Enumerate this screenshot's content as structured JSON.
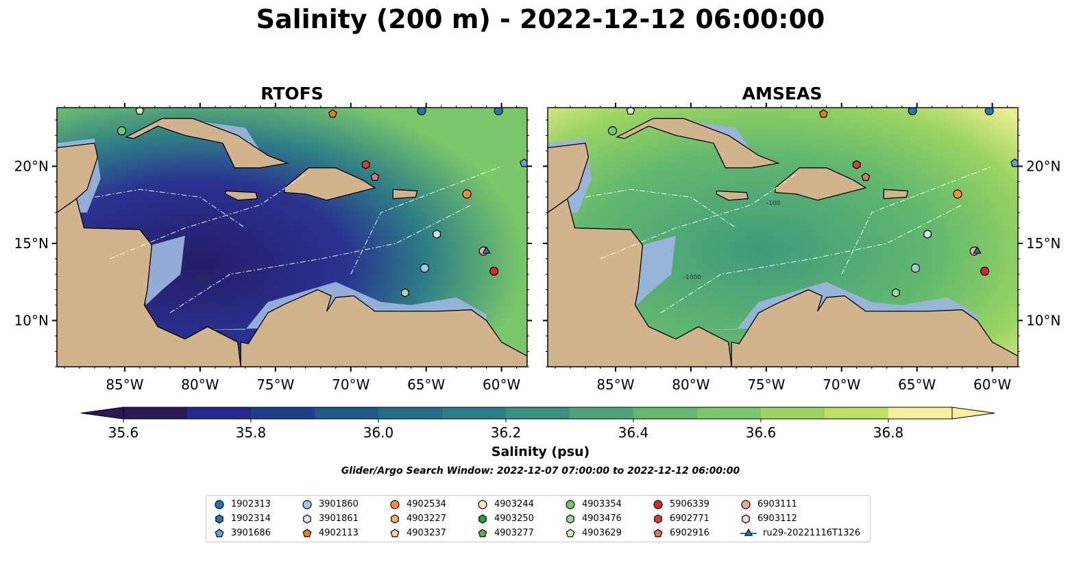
{
  "figure": {
    "title": "Salinity (200 m) - 2022-12-12 06:00:00",
    "search_window": "Glider/Argo Search Window: 2022-12-07 07:00:00 to 2022-12-12 06:00:00"
  },
  "panels": [
    {
      "title": "RTOFS"
    },
    {
      "title": "AMSEAS"
    }
  ],
  "colors": {
    "land": "#d2b48c",
    "shelf_water": "#99b4dc",
    "coastline": "#000000",
    "eez_boundary": "#ffffff",
    "colorscale": [
      "#2a1858",
      "#26288e",
      "#1f3e8c",
      "#1d5a8a",
      "#1f6f88",
      "#2a7f86",
      "#38927f",
      "#4ea478",
      "#62b86e",
      "#7bc86a",
      "#9bd461",
      "#bfe067",
      "#f6f09a"
    ]
  },
  "chart_data": {
    "type": "heatmap",
    "variable": "Salinity",
    "colorbar": {
      "label": "Salinity (psu)",
      "ticks": [
        "35.6",
        "35.8",
        "36.0",
        "36.2",
        "36.4",
        "36.6",
        "36.8"
      ],
      "range": [
        35.6,
        36.9
      ],
      "extend": "both"
    },
    "x_ticks": [
      "85°W",
      "80°W",
      "75°W",
      "70°W",
      "65°W",
      "60°W"
    ],
    "x_tick_values": [
      -85,
      -80,
      -75,
      -70,
      -65,
      -60
    ],
    "y_ticks": [
      "10°N",
      "15°N",
      "20°N"
    ],
    "y_tick_values": [
      10,
      15,
      20
    ],
    "lon_range": [
      -89.5,
      -58.3
    ],
    "lat_range": [
      7,
      23.8
    ],
    "bathymetry_contour_labels": [
      "-1000",
      "-100"
    ]
  },
  "legend": {
    "items": [
      {
        "label": "1902313",
        "marker": "circle",
        "color": "#1f77b4"
      },
      {
        "label": "1902314",
        "marker": "hexagon",
        "color": "#1f77b4"
      },
      {
        "label": "3901686",
        "marker": "pentagon",
        "color": "#5fa3dc"
      },
      {
        "label": "3901860",
        "marker": "circle",
        "color": "#9ecae1"
      },
      {
        "label": "3901861",
        "marker": "hexagon",
        "color": "#d4eaf7"
      },
      {
        "label": "4902113",
        "marker": "pentagon",
        "color": "#f07f10"
      },
      {
        "label": "4902534",
        "marker": "circle",
        "color": "#fd8d3c"
      },
      {
        "label": "4903227",
        "marker": "hexagon",
        "color": "#fdae6b"
      },
      {
        "label": "4903237",
        "marker": "pentagon",
        "color": "#fdd0a2"
      },
      {
        "label": "4903244",
        "marker": "circle",
        "color": "#fde0c5"
      },
      {
        "label": "4903250",
        "marker": "hexagon",
        "color": "#2ca02c"
      },
      {
        "label": "4903277",
        "marker": "pentagon",
        "color": "#55b23f"
      },
      {
        "label": "4903354",
        "marker": "circle",
        "color": "#74c476"
      },
      {
        "label": "4903476",
        "marker": "hexagon",
        "color": "#a1d99b"
      },
      {
        "label": "4903629",
        "marker": "pentagon",
        "color": "#d1f5c8"
      },
      {
        "label": "5906339",
        "marker": "circle",
        "color": "#d62728"
      },
      {
        "label": "6902771",
        "marker": "hexagon",
        "color": "#de3c3c"
      },
      {
        "label": "6902916",
        "marker": "pentagon",
        "color": "#f06b6b"
      },
      {
        "label": "6903111",
        "marker": "circle",
        "color": "#f4a4a4"
      },
      {
        "label": "6903112",
        "marker": "hexagon",
        "color": "#fbd3d3"
      },
      {
        "label": "ru29-20221116T1326",
        "marker": "triangle-line",
        "color": "#1f77b4"
      }
    ]
  },
  "observations": [
    {
      "id": "1902313",
      "lon": -65.3,
      "lat": 23.6
    },
    {
      "id": "1902313",
      "lon": -60.2,
      "lat": 23.6
    },
    {
      "id": "3901686",
      "lon": -58.5,
      "lat": 20.2
    },
    {
      "id": "4903629",
      "lon": -84.0,
      "lat": 23.6
    },
    {
      "id": "4902113",
      "lon": -71.2,
      "lat": 23.4
    },
    {
      "id": "4903354",
      "lon": -85.2,
      "lat": 22.3
    },
    {
      "id": "6902771",
      "lon": -69.0,
      "lat": 20.1
    },
    {
      "id": "6902916",
      "lon": -68.4,
      "lat": 19.3
    },
    {
      "id": "4902534",
      "lon": -62.3,
      "lat": 18.2
    },
    {
      "id": "3901861",
      "lon": -64.3,
      "lat": 15.6
    },
    {
      "id": "3901860",
      "lon": -65.1,
      "lat": 13.4
    },
    {
      "id": "6903111",
      "lon": -61.2,
      "lat": 14.5
    },
    {
      "id": "5906339",
      "lon": -60.5,
      "lat": 13.2
    },
    {
      "id": "4903476",
      "lon": -66.4,
      "lat": 11.8
    },
    {
      "id": "ru29-20221116T1326",
      "lon": -61.0,
      "lat": 14.5
    }
  ]
}
